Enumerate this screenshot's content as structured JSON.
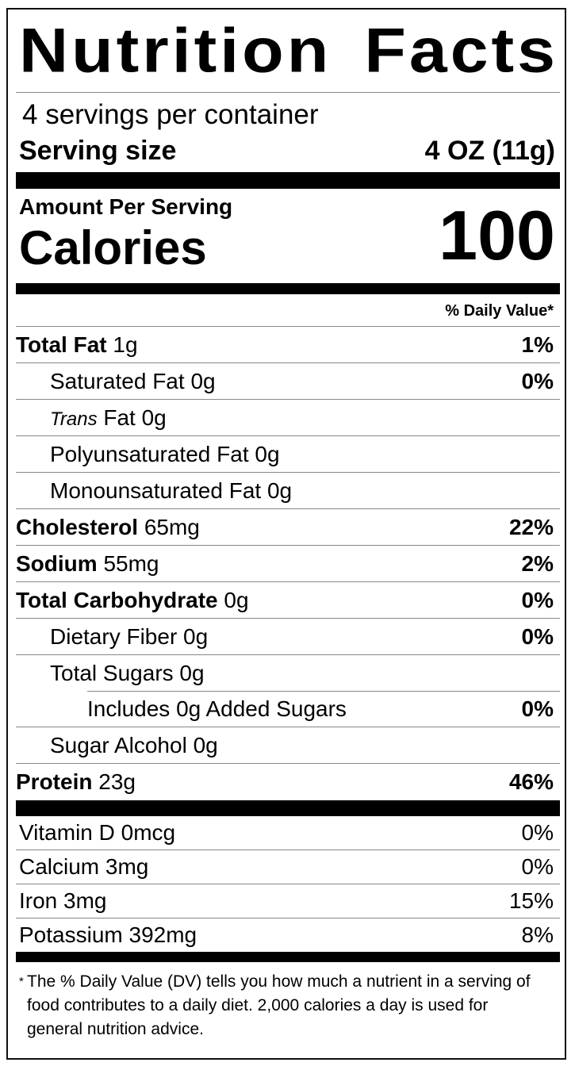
{
  "title_word1": "Nutrition",
  "title_word2": "Facts",
  "servings_per_container": "4 servings per container",
  "serving_size_label": "Serving size",
  "serving_size_value": "4 OZ (11g)",
  "amount_per_serving": "Amount Per Serving",
  "calories_label": "Calories",
  "calories_value": "100",
  "daily_value_header": "% Daily Value*",
  "nutrients": [
    {
      "name": "Total Fat",
      "amount": "1g",
      "dv": "1%",
      "bold": true,
      "indent": 0
    },
    {
      "name": "Saturated Fat",
      "amount": "0g",
      "dv": "0%",
      "bold": false,
      "indent": 1
    },
    {
      "name": "Trans",
      "name_suffix": "Fat",
      "amount": "0g",
      "dv": "",
      "bold": false,
      "indent": 1,
      "italic_prefix": true
    },
    {
      "name": "Polyunsaturated Fat",
      "amount": "0g",
      "dv": "",
      "bold": false,
      "indent": 1
    },
    {
      "name": "Monounsaturated Fat",
      "amount": "0g",
      "dv": "",
      "bold": false,
      "indent": 1
    },
    {
      "name": "Cholesterol",
      "amount": "65mg",
      "dv": "22%",
      "bold": true,
      "indent": 0
    },
    {
      "name": "Sodium",
      "amount": "55mg",
      "dv": "2%",
      "bold": true,
      "indent": 0
    },
    {
      "name": "Total Carbohydrate",
      "amount": "0g",
      "dv": "0%",
      "bold": true,
      "indent": 0
    },
    {
      "name": "Dietary Fiber",
      "amount": "0g",
      "dv": "0%",
      "bold": false,
      "indent": 1
    },
    {
      "name": "Total Sugars",
      "amount": "0g",
      "dv": "",
      "bold": false,
      "indent": 1
    },
    {
      "name": "Includes 0g Added Sugars",
      "amount": "",
      "dv": "0%",
      "bold": false,
      "indent": 2
    },
    {
      "name": "Sugar Alcohol",
      "amount": "0g",
      "dv": "",
      "bold": false,
      "indent": 1
    },
    {
      "name": "Protein",
      "amount": "23g",
      "dv": "46%",
      "bold": true,
      "indent": 0
    }
  ],
  "vitamins": [
    {
      "name": "Vitamin D 0mcg",
      "dv": "0%"
    },
    {
      "name": "Calcium 3mg",
      "dv": "0%"
    },
    {
      "name": "Iron 3mg",
      "dv": "15%"
    },
    {
      "name": "Potassium 392mg",
      "dv": "8%"
    }
  ],
  "footnote_star": "*",
  "footnote": "The % Daily Value (DV) tells you how much a nutrient in a serving of food contributes to a daily diet. 2,000 calories a day is used for general nutrition advice."
}
